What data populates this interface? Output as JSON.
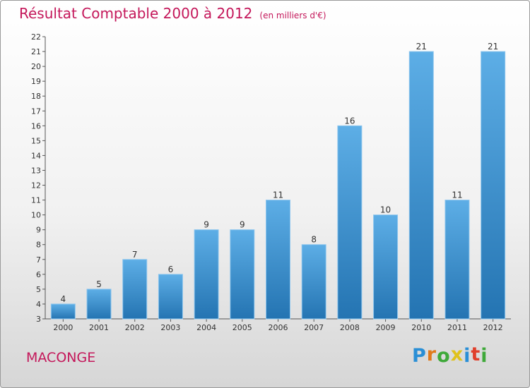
{
  "chart_data": {
    "type": "bar",
    "title": "Résultat Comptable 2000 à 2012",
    "subtitle": "(en milliers d'€)",
    "categories": [
      "2000",
      "2001",
      "2002",
      "2003",
      "2004",
      "2005",
      "2006",
      "2007",
      "2008",
      "2009",
      "2010",
      "2011",
      "2012"
    ],
    "values": [
      4,
      5,
      7,
      6,
      9,
      9,
      11,
      8,
      16,
      10,
      21,
      11,
      21
    ],
    "ylim": [
      3,
      22
    ],
    "yticks": [
      3,
      4,
      5,
      6,
      7,
      8,
      9,
      10,
      11,
      12,
      13,
      14,
      15,
      16,
      17,
      18,
      19,
      20,
      21,
      22
    ],
    "xlabel": "",
    "ylabel": "",
    "grid": false,
    "bar_color_top": "#5daee6",
    "bar_color_bottom": "#2474b2"
  },
  "place_name": "MACONGE",
  "logo": {
    "letters": [
      "P",
      "r",
      "o",
      "x",
      "i",
      "t",
      "i"
    ],
    "colors": [
      "#2a8fd6",
      "#e07a1c",
      "#3fa93a",
      "#e0c21c",
      "#2a8fd6",
      "#e0402c",
      "#3fa93a"
    ]
  },
  "colors": {
    "title": "#c4175a"
  }
}
